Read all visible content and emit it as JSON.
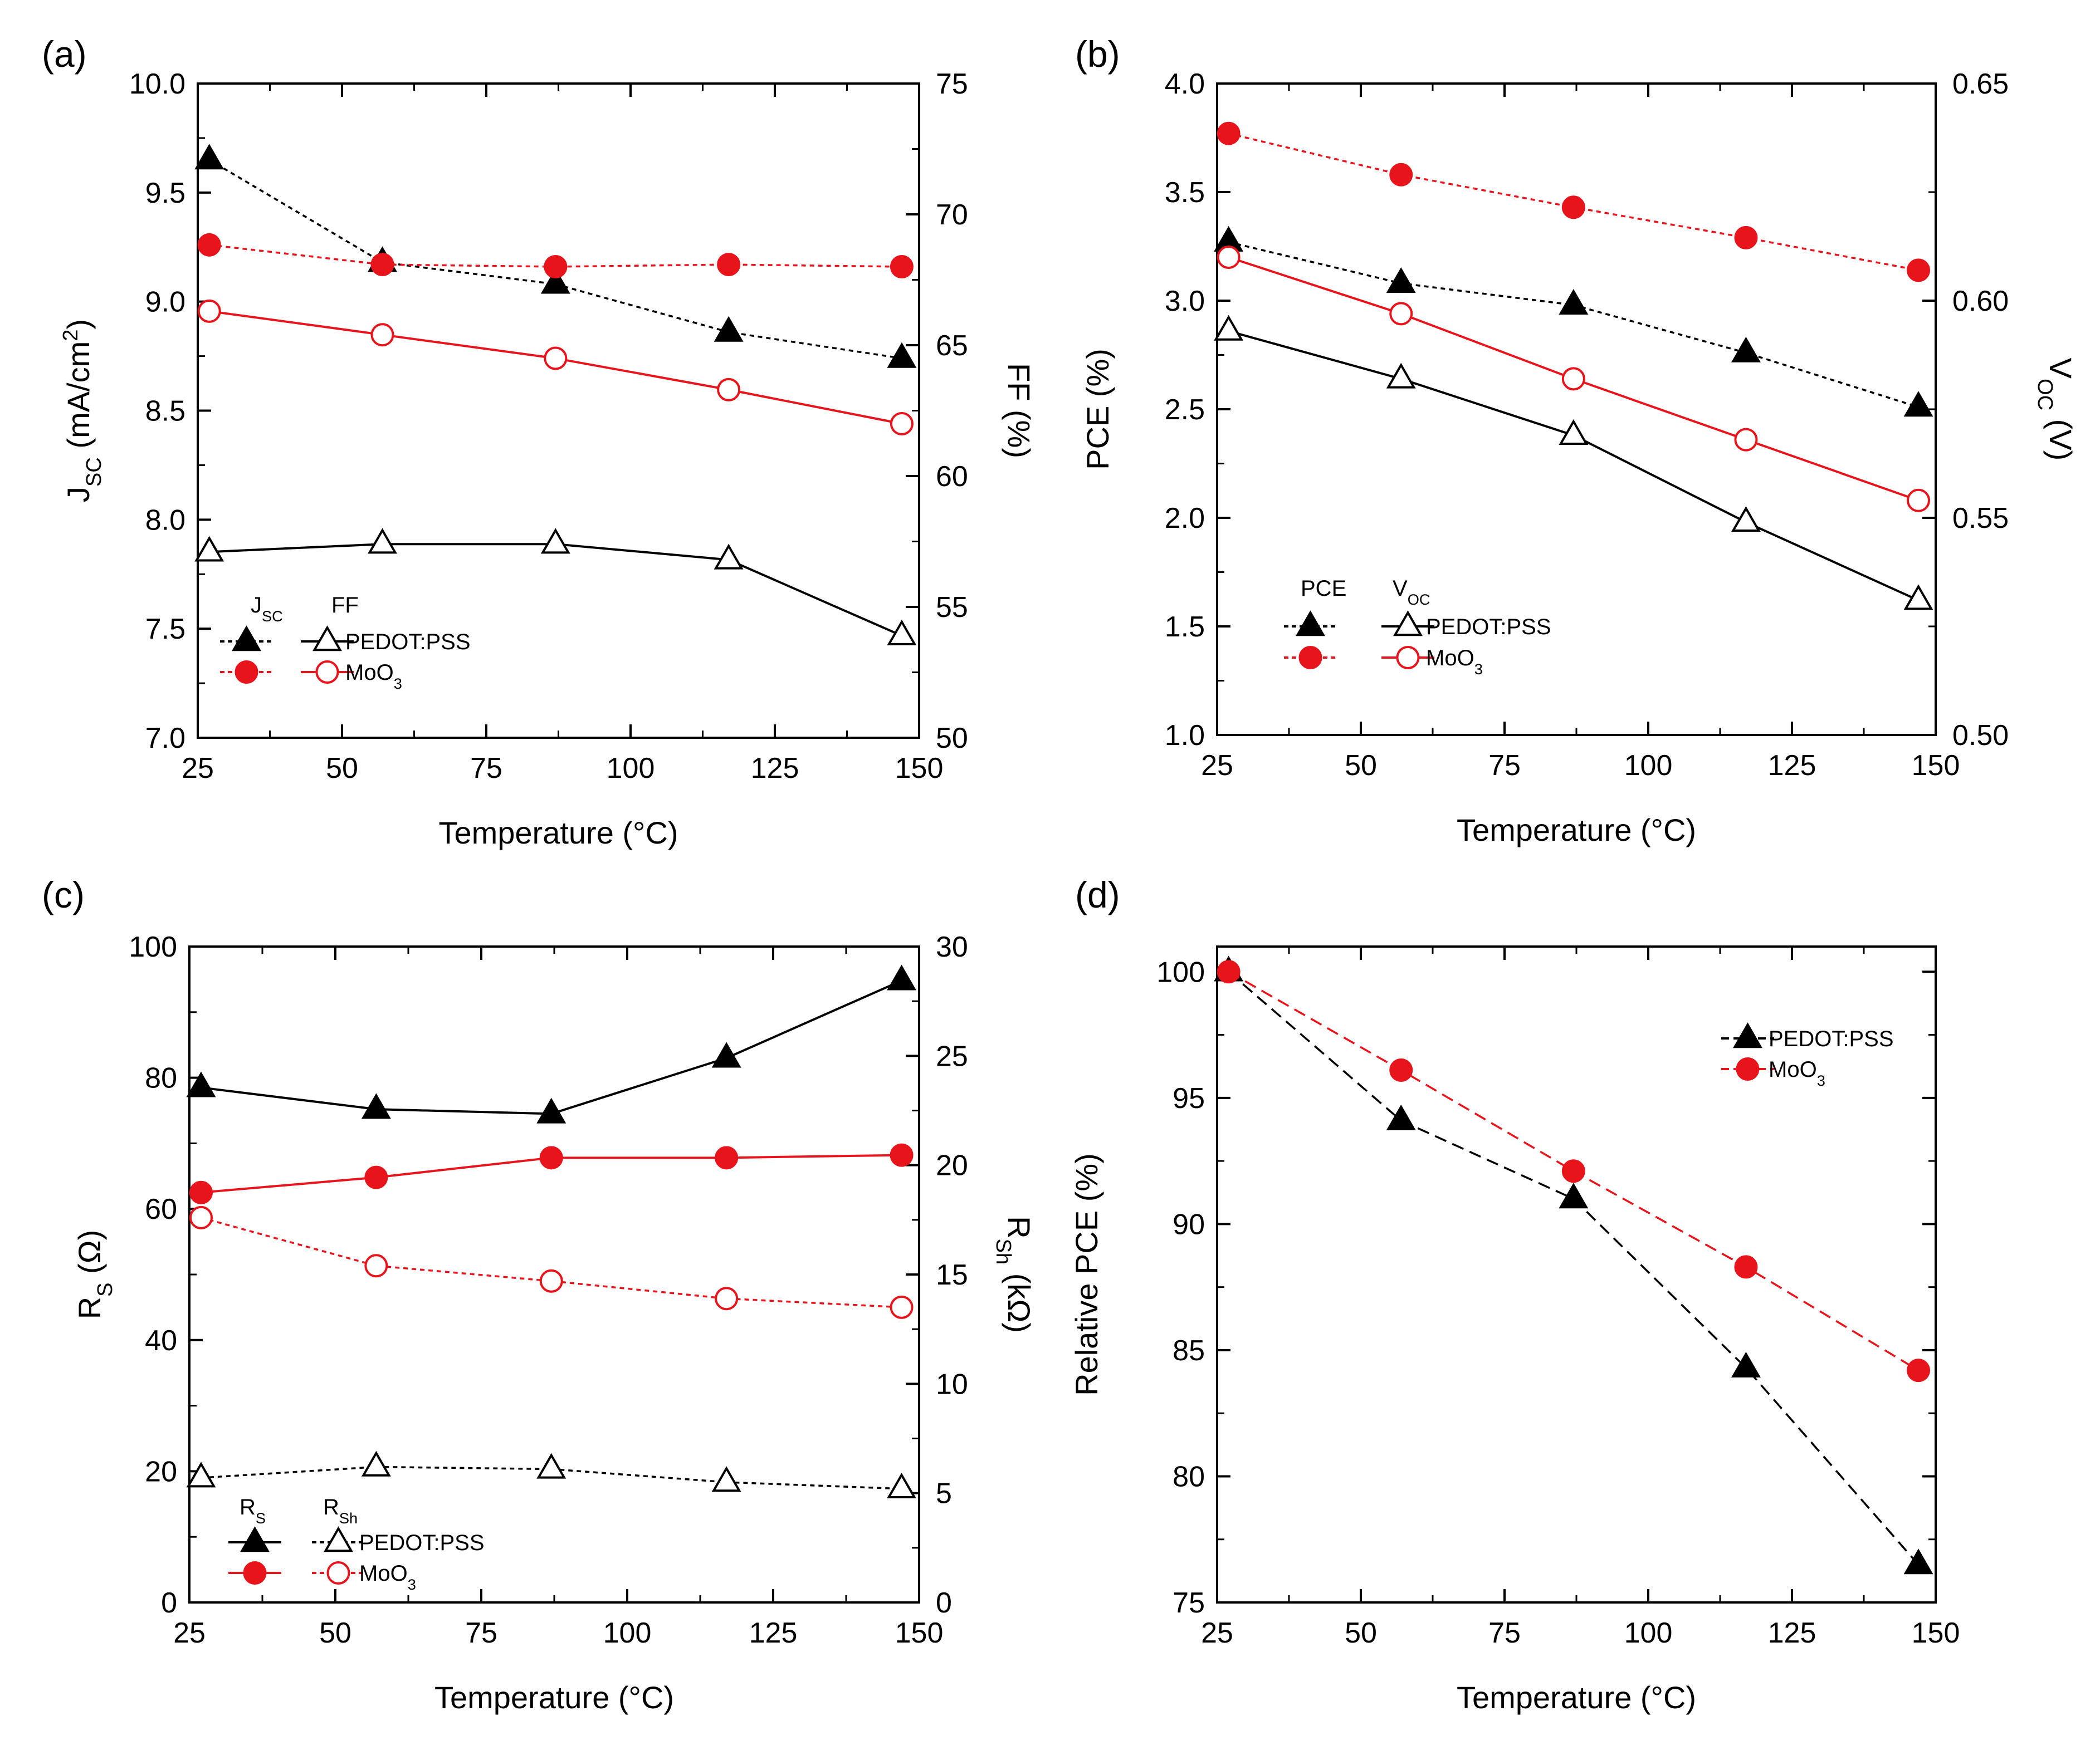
{
  "colors": {
    "black": "#000000",
    "red": "#e8141c"
  },
  "chart_data": [
    {
      "panel": "a",
      "panel_label": "(a)",
      "type": "line",
      "xlabel": "Temperature (°C)",
      "xlim": [
        25,
        150
      ],
      "xticks": [
        "25",
        "50",
        "75",
        "100",
        "125",
        "150"
      ],
      "ylabel_main": "J",
      "ylabel_sub": "SC",
      "ylabel_rest": " (mA/cm",
      "ylabel_sup": "2",
      "ylabel_end": ")",
      "ylim": [
        7.0,
        10.0
      ],
      "yticks": [
        "7.0",
        "7.5",
        "8.0",
        "8.5",
        "9.0",
        "9.5",
        "10.0"
      ],
      "y2label": "FF (%)",
      "y2lim": [
        50,
        75
      ],
      "y2ticks": [
        "50",
        "55",
        "60",
        "65",
        "70",
        "75"
      ],
      "legend_headers": [
        {
          "main": "J",
          "sub": "SC"
        },
        {
          "main": "FF",
          "sub": ""
        }
      ],
      "legend_entries": [
        {
          "main": "PEDOT:PSS",
          "sub": ""
        },
        {
          "main": "MoO",
          "sub": "3"
        }
      ],
      "series": [
        {
          "name": "PEDOT:PSS Jsc",
          "axis": "left",
          "color": "#000000",
          "marker": "triangle",
          "filled": true,
          "dash": "dotted",
          "x": [
            27,
            57,
            87,
            117,
            147
          ],
          "values": [
            9.65,
            9.18,
            9.08,
            8.86,
            8.74
          ]
        },
        {
          "name": "MoO3 Jsc",
          "axis": "left",
          "color": "#e8141c",
          "marker": "circle",
          "filled": true,
          "dash": "dotted",
          "x": [
            27,
            57,
            87,
            117,
            147
          ],
          "values": [
            9.26,
            9.17,
            9.16,
            9.17,
            9.16
          ]
        },
        {
          "name": "PEDOT:PSS FF",
          "axis": "right",
          "color": "#000000",
          "marker": "triangle",
          "filled": false,
          "dash": "solid",
          "x": [
            27,
            57,
            87,
            117,
            147
          ],
          "values": [
            57.1,
            57.4,
            57.4,
            56.8,
            53.9
          ]
        },
        {
          "name": "MoO3 FF",
          "axis": "right",
          "color": "#e8141c",
          "marker": "circle",
          "filled": false,
          "dash": "solid",
          "x": [
            27,
            57,
            87,
            117,
            147
          ],
          "values": [
            66.3,
            65.4,
            64.5,
            63.3,
            62.0
          ]
        }
      ]
    },
    {
      "panel": "b",
      "panel_label": "(b)",
      "type": "line",
      "xlabel": "Temperature (°C)",
      "xlim": [
        25,
        150
      ],
      "xticks": [
        "25",
        "50",
        "75",
        "100",
        "125",
        "150"
      ],
      "ylabel_main": "PCE (%)",
      "ylabel_sub": "",
      "ylabel_rest": "",
      "ylabel_sup": "",
      "ylabel_end": "",
      "ylim": [
        1.0,
        4.0
      ],
      "yticks": [
        "1.0",
        "1.5",
        "2.0",
        "2.5",
        "3.0",
        "3.5",
        "4.0"
      ],
      "y2label_main": "V",
      "y2label_sub": "OC",
      "y2label_rest": " (V)",
      "y2lim": [
        0.5,
        0.65
      ],
      "y2ticks": [
        "0.50",
        "0.55",
        "0.60",
        "0.65"
      ],
      "legend_headers": [
        {
          "main": "PCE",
          "sub": ""
        },
        {
          "main": "V",
          "sub": "OC"
        }
      ],
      "legend_entries": [
        {
          "main": "PEDOT:PSS",
          "sub": ""
        },
        {
          "main": "MoO",
          "sub": "3"
        }
      ],
      "series": [
        {
          "name": "PEDOT:PSS PCE",
          "axis": "left",
          "color": "#000000",
          "marker": "triangle",
          "filled": true,
          "dash": "dotted",
          "x": [
            27,
            57,
            87,
            117,
            147
          ],
          "values": [
            3.27,
            3.08,
            2.98,
            2.76,
            2.51
          ]
        },
        {
          "name": "MoO3 PCE",
          "axis": "left",
          "color": "#e8141c",
          "marker": "circle",
          "filled": true,
          "dash": "dotted",
          "x": [
            27,
            57,
            87,
            117,
            147
          ],
          "values": [
            3.77,
            3.58,
            3.43,
            3.29,
            3.14
          ]
        },
        {
          "name": "PEDOT:PSS Voc",
          "axis": "right",
          "color": "#000000",
          "marker": "triangle",
          "filled": false,
          "dash": "solid",
          "x": [
            27,
            57,
            87,
            117,
            147
          ],
          "values": [
            0.593,
            0.582,
            0.569,
            0.549,
            0.531
          ]
        },
        {
          "name": "MoO3 Voc",
          "axis": "right",
          "color": "#e8141c",
          "marker": "circle",
          "filled": false,
          "dash": "solid",
          "x": [
            27,
            57,
            87,
            117,
            147
          ],
          "values": [
            0.61,
            0.597,
            0.582,
            0.568,
            0.554
          ]
        }
      ]
    },
    {
      "panel": "c",
      "panel_label": "(c)",
      "type": "line",
      "xlabel": "Temperature (°C)",
      "xlim": [
        25,
        150
      ],
      "xticks": [
        "25",
        "50",
        "75",
        "100",
        "125",
        "150"
      ],
      "ylabel_main": "R",
      "ylabel_sub": "S",
      "ylabel_rest": " (Ω)",
      "ylabel_sup": "",
      "ylabel_end": "",
      "ylim": [
        0,
        100
      ],
      "yticks": [
        "0",
        "20",
        "40",
        "60",
        "80",
        "100"
      ],
      "y2label_main": "R",
      "y2label_sub": "Sh",
      "y2label_rest": " (kΩ)",
      "y2lim": [
        0,
        30
      ],
      "y2ticks": [
        "0",
        "5",
        "10",
        "15",
        "20",
        "25",
        "30"
      ],
      "legend_headers": [
        {
          "main": "R",
          "sub": "S"
        },
        {
          "main": "R",
          "sub": "Sh"
        }
      ],
      "legend_entries": [
        {
          "main": "PEDOT:PSS",
          "sub": ""
        },
        {
          "main": "MoO",
          "sub": "3"
        }
      ],
      "series": [
        {
          "name": "PEDOT:PSS Rs",
          "axis": "left",
          "color": "#000000",
          "marker": "triangle",
          "filled": true,
          "dash": "solid",
          "x": [
            27,
            57,
            87,
            117,
            147
          ],
          "values": [
            78.5,
            75.2,
            74.5,
            83.0,
            94.8
          ]
        },
        {
          "name": "MoO3 Rs",
          "axis": "left",
          "color": "#e8141c",
          "marker": "circle",
          "filled": true,
          "dash": "solid",
          "x": [
            27,
            57,
            87,
            117,
            147
          ],
          "values": [
            62.5,
            64.8,
            67.8,
            67.8,
            68.2
          ]
        },
        {
          "name": "PEDOT:PSS Rsh",
          "axis": "right",
          "color": "#000000",
          "marker": "triangle",
          "filled": false,
          "dash": "dotted",
          "x": [
            27,
            57,
            87,
            117,
            147
          ],
          "values": [
            5.7,
            6.2,
            6.1,
            5.5,
            5.2
          ]
        },
        {
          "name": "MoO3 Rsh",
          "axis": "right",
          "color": "#e8141c",
          "marker": "circle",
          "filled": false,
          "dash": "dotted",
          "x": [
            27,
            57,
            87,
            117,
            147
          ],
          "values": [
            17.6,
            15.4,
            14.7,
            13.9,
            13.5
          ]
        }
      ]
    },
    {
      "panel": "d",
      "panel_label": "(d)",
      "type": "line",
      "xlabel": "Temperature (°C)",
      "xlim": [
        25,
        150
      ],
      "xticks": [
        "25",
        "50",
        "75",
        "100",
        "125",
        "150"
      ],
      "ylabel_main": "Relative PCE (%)",
      "ylabel_sub": "",
      "ylabel_rest": "",
      "ylabel_sup": "",
      "ylabel_end": "",
      "ylim": [
        75,
        101
      ],
      "yticks": [
        "75",
        "80",
        "85",
        "90",
        "95",
        "100"
      ],
      "legend_headers": [],
      "legend_entries": [
        {
          "main": "PEDOT:PSS",
          "sub": ""
        },
        {
          "main": "MoO",
          "sub": "3"
        }
      ],
      "series": [
        {
          "name": "PEDOT:PSS",
          "axis": "left",
          "color": "#000000",
          "marker": "triangle",
          "filled": true,
          "dash": "dashed",
          "x": [
            27,
            57,
            87,
            117,
            147
          ],
          "values": [
            100.0,
            94.1,
            91.0,
            84.3,
            76.5
          ]
        },
        {
          "name": "MoO3",
          "axis": "left",
          "color": "#e8141c",
          "marker": "circle",
          "filled": true,
          "dash": "dashed",
          "x": [
            27,
            57,
            87,
            117,
            147
          ],
          "values": [
            100.0,
            96.1,
            92.1,
            88.3,
            84.2
          ]
        }
      ]
    }
  ]
}
